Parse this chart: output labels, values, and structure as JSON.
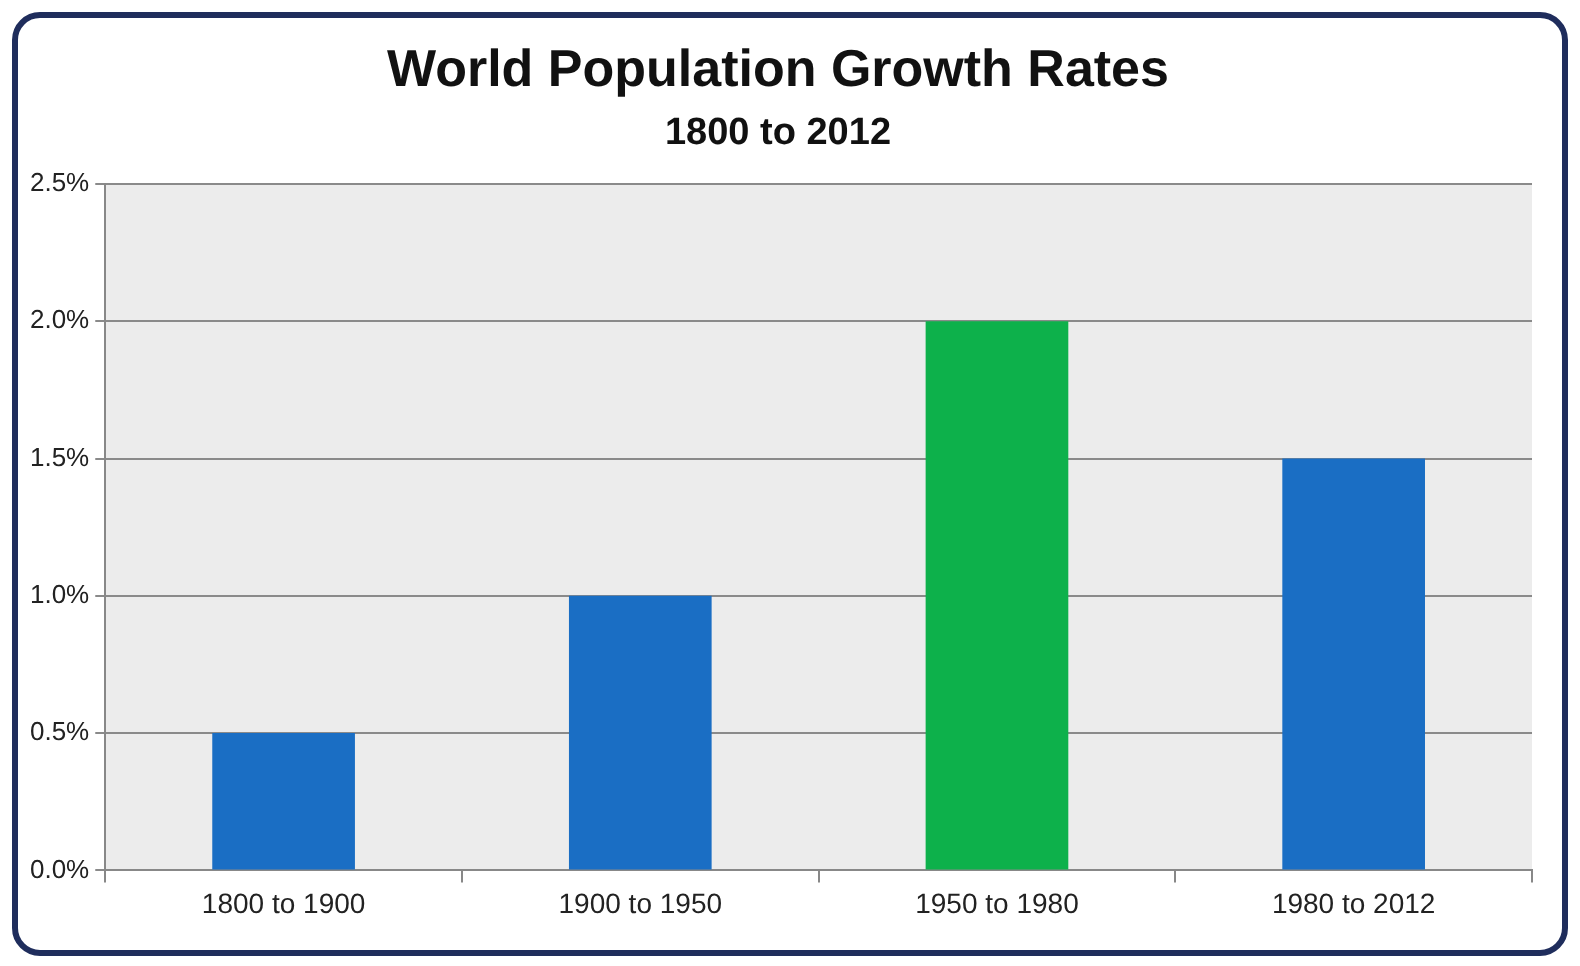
{
  "chart_data": {
    "type": "bar",
    "title": "World Population Growth Rates",
    "subtitle": "1800 to 2012",
    "categories": [
      "1800 to 1900",
      "1900 to 1950",
      "1950 to 1980",
      "1980 to 2012"
    ],
    "values": [
      0.5,
      1.0,
      2.0,
      1.5
    ],
    "colors": [
      "#1a6ec4",
      "#1a6ec4",
      "#0db14b",
      "#1a6ec4"
    ],
    "ylim": [
      0,
      2.5
    ],
    "yticks": [
      {
        "value": 0,
        "label": "0.0%"
      },
      {
        "value": 0.5,
        "label": "0.5%"
      },
      {
        "value": 1.0,
        "label": "1.0%"
      },
      {
        "value": 1.5,
        "label": "1.5%"
      },
      {
        "value": 2.0,
        "label": "2.0%"
      },
      {
        "value": 2.5,
        "label": "2.5%"
      }
    ],
    "grid": "y",
    "legend": false
  }
}
